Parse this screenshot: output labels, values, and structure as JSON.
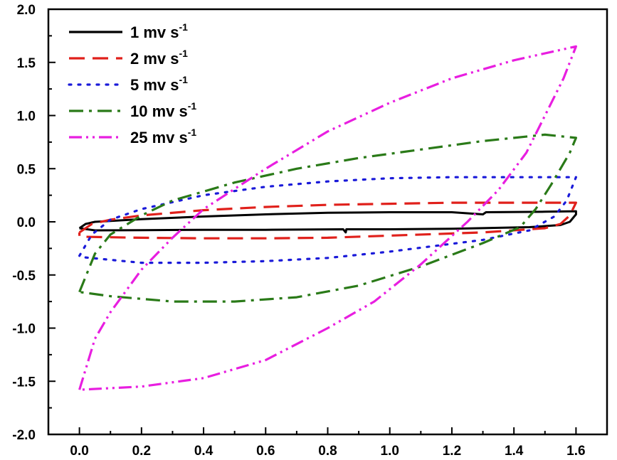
{
  "chart_data": {
    "type": "line",
    "title": "",
    "xlabel": "",
    "ylabel": "",
    "xlim": [
      -0.1,
      1.7
    ],
    "ylim": [
      -2.0,
      2.0
    ],
    "x_ticks": [
      "0.0",
      "0.2",
      "0.4",
      "0.6",
      "0.8",
      "1.0",
      "1.2",
      "1.4",
      "1.6"
    ],
    "y_ticks": [
      "2.0",
      "1.5",
      "1.0",
      "0.5",
      "0.0",
      "-0.5",
      "-1.0",
      "-1.5",
      "-2.0"
    ],
    "grid": false,
    "legend_position": "top-left",
    "series": [
      {
        "name": "1 mv s",
        "sup": "-1",
        "color": "#000000",
        "dash": "none",
        "points": [
          [
            0.0,
            -0.06
          ],
          [
            0.02,
            -0.02
          ],
          [
            0.05,
            0.0
          ],
          [
            0.2,
            0.025
          ],
          [
            0.4,
            0.05
          ],
          [
            0.6,
            0.07
          ],
          [
            0.8,
            0.085
          ],
          [
            1.0,
            0.09
          ],
          [
            1.2,
            0.09
          ],
          [
            1.3,
            0.07
          ],
          [
            1.31,
            0.09
          ],
          [
            1.5,
            0.095
          ],
          [
            1.6,
            0.1
          ],
          [
            1.6,
            0.07
          ],
          [
            1.58,
            0.0
          ],
          [
            1.55,
            -0.03
          ],
          [
            1.45,
            -0.05
          ],
          [
            1.2,
            -0.065
          ],
          [
            1.0,
            -0.07
          ],
          [
            0.86,
            -0.07
          ],
          [
            0.858,
            -0.1
          ],
          [
            0.85,
            -0.07
          ],
          [
            0.6,
            -0.075
          ],
          [
            0.4,
            -0.075
          ],
          [
            0.2,
            -0.078
          ],
          [
            0.05,
            -0.08
          ],
          [
            0.0,
            -0.06
          ]
        ]
      },
      {
        "name": "2 mv s",
        "sup": "-1",
        "color": "#e0201b",
        "dash": "22,11",
        "points": [
          [
            0.0,
            -0.1
          ],
          [
            0.04,
            -0.02
          ],
          [
            0.1,
            0.02
          ],
          [
            0.2,
            0.06
          ],
          [
            0.4,
            0.11
          ],
          [
            0.6,
            0.14
          ],
          [
            0.8,
            0.16
          ],
          [
            1.0,
            0.17
          ],
          [
            1.2,
            0.18
          ],
          [
            1.4,
            0.18
          ],
          [
            1.6,
            0.18
          ],
          [
            1.58,
            0.06
          ],
          [
            1.55,
            -0.02
          ],
          [
            1.5,
            -0.06
          ],
          [
            1.3,
            -0.1
          ],
          [
            1.0,
            -0.13
          ],
          [
            0.8,
            -0.15
          ],
          [
            0.6,
            -0.155
          ],
          [
            0.4,
            -0.155
          ],
          [
            0.2,
            -0.15
          ],
          [
            0.1,
            -0.145
          ],
          [
            0.0,
            -0.14
          ],
          [
            0.0,
            -0.1
          ]
        ]
      },
      {
        "name": "5 mv s",
        "sup": "-1",
        "color": "#1a1ad9",
        "dash": "3,10",
        "points": [
          [
            0.0,
            -0.32
          ],
          [
            0.04,
            -0.12
          ],
          [
            0.1,
            0.02
          ],
          [
            0.2,
            0.12
          ],
          [
            0.4,
            0.25
          ],
          [
            0.6,
            0.33
          ],
          [
            0.8,
            0.38
          ],
          [
            1.0,
            0.41
          ],
          [
            1.2,
            0.42
          ],
          [
            1.4,
            0.42
          ],
          [
            1.6,
            0.42
          ],
          [
            1.57,
            0.2
          ],
          [
            1.53,
            0.05
          ],
          [
            1.45,
            -0.08
          ],
          [
            1.3,
            -0.17
          ],
          [
            1.0,
            -0.28
          ],
          [
            0.8,
            -0.34
          ],
          [
            0.6,
            -0.37
          ],
          [
            0.4,
            -0.385
          ],
          [
            0.2,
            -0.385
          ],
          [
            0.0,
            -0.33
          ]
        ]
      },
      {
        "name": "10 mv s",
        "sup": "-1",
        "color": "#2a7a18",
        "dash": "20,8,4,8",
        "points": [
          [
            0.0,
            -0.66
          ],
          [
            0.05,
            -0.3
          ],
          [
            0.1,
            -0.12
          ],
          [
            0.2,
            0.06
          ],
          [
            0.3,
            0.2
          ],
          [
            0.5,
            0.37
          ],
          [
            0.7,
            0.5
          ],
          [
            0.9,
            0.6
          ],
          [
            1.1,
            0.68
          ],
          [
            1.3,
            0.76
          ],
          [
            1.5,
            0.82
          ],
          [
            1.6,
            0.79
          ],
          [
            1.58,
            0.65
          ],
          [
            1.52,
            0.35
          ],
          [
            1.47,
            0.12
          ],
          [
            1.42,
            -0.05
          ],
          [
            1.3,
            -0.2
          ],
          [
            1.1,
            -0.42
          ],
          [
            0.9,
            -0.6
          ],
          [
            0.7,
            -0.71
          ],
          [
            0.5,
            -0.75
          ],
          [
            0.3,
            -0.75
          ],
          [
            0.1,
            -0.7
          ],
          [
            0.0,
            -0.66
          ]
        ]
      },
      {
        "name": "25 mv s",
        "sup": "-1",
        "color": "#e81ee0",
        "dash": "18,6,3,6,3,6",
        "points": [
          [
            0.0,
            -1.58
          ],
          [
            0.05,
            -1.1
          ],
          [
            0.1,
            -0.85
          ],
          [
            0.15,
            -0.65
          ],
          [
            0.2,
            -0.45
          ],
          [
            0.3,
            -0.15
          ],
          [
            0.4,
            0.12
          ],
          [
            0.6,
            0.5
          ],
          [
            0.8,
            0.85
          ],
          [
            1.0,
            1.12
          ],
          [
            1.2,
            1.35
          ],
          [
            1.4,
            1.52
          ],
          [
            1.6,
            1.65
          ],
          [
            1.56,
            1.35
          ],
          [
            1.5,
            1.0
          ],
          [
            1.44,
            0.65
          ],
          [
            1.35,
            0.3
          ],
          [
            1.25,
            0.0
          ],
          [
            1.1,
            -0.4
          ],
          [
            0.95,
            -0.75
          ],
          [
            0.8,
            -1.0
          ],
          [
            0.6,
            -1.3
          ],
          [
            0.4,
            -1.47
          ],
          [
            0.2,
            -1.55
          ],
          [
            0.0,
            -1.58
          ]
        ]
      }
    ]
  }
}
